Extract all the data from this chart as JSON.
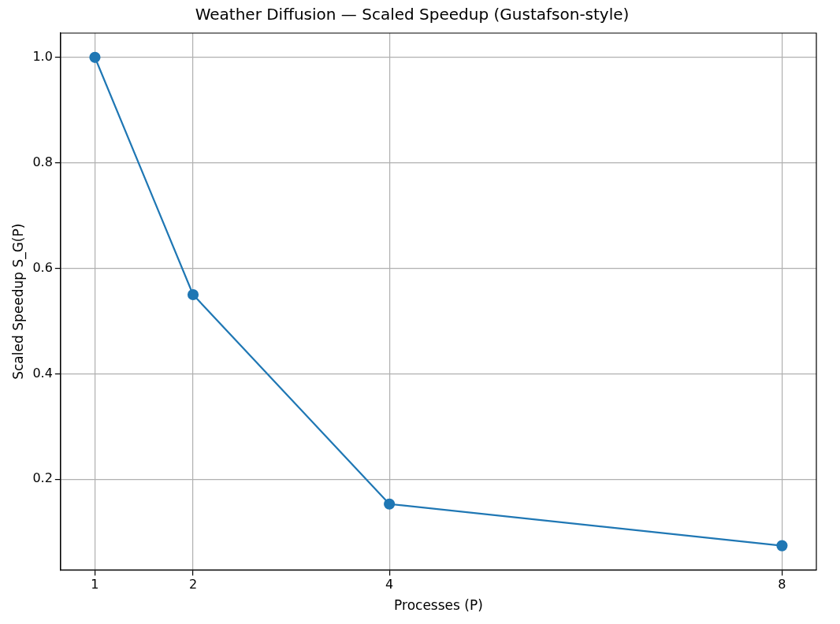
{
  "chart_data": {
    "type": "line",
    "title": "Weather Diffusion — Scaled Speedup (Gustafson-style)",
    "xlabel": "Processes (P)",
    "ylabel": "Scaled Speedup S_G(P)",
    "x": [
      1,
      2,
      4,
      8
    ],
    "series": [
      {
        "color": "#1f77b4",
        "values": [
          1.0,
          0.55,
          0.153,
          0.074
        ]
      }
    ],
    "xlim": [
      0.65,
      8.35
    ],
    "xticks": [
      1,
      2,
      4,
      8
    ],
    "ylim": [
      0.028,
      1.046
    ],
    "yticks": [
      {
        "value": 0.2,
        "label": "0.2"
      },
      {
        "value": 0.4,
        "label": "0.4"
      },
      {
        "value": 0.6,
        "label": "0.6"
      },
      {
        "value": 0.8,
        "label": "0.8"
      },
      {
        "value": 1.0,
        "label": "1.0"
      }
    ],
    "grid": true,
    "marker": "circle",
    "line_style": "solid"
  }
}
